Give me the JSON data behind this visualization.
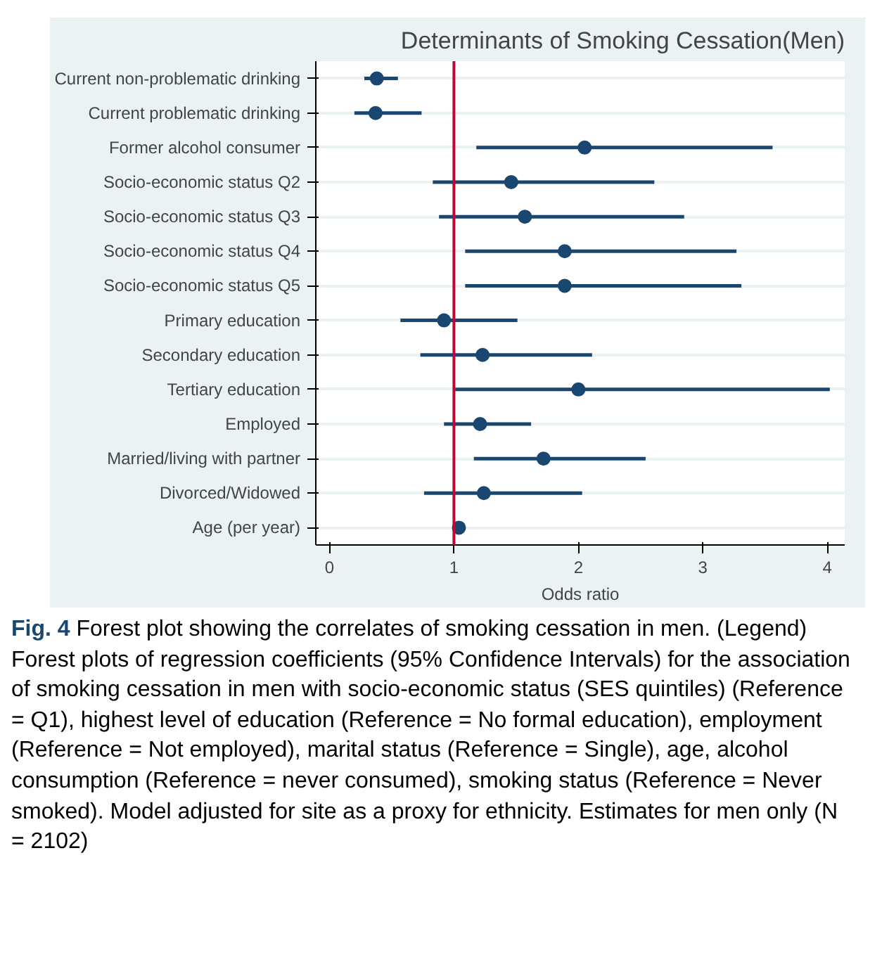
{
  "chart_data": {
    "type": "scatter",
    "title": "Determinants of Smoking Cessation(Men)",
    "xlabel": "Odds ratio",
    "categories": [
      "Current non-problematic drinking",
      "Current problematic drinking",
      "Former alcohol consumer",
      "Socio-economic status Q2",
      "Socio-economic status Q3",
      "Socio-economic status Q4",
      "Socio-economic status Q5",
      "Primary education",
      "Secondary education",
      "Tertiary education",
      "Employed",
      "Married/living with partner",
      "Divorced/Widowed",
      "Age (per year)"
    ],
    "orientation": "horizontal",
    "series": [
      {
        "color": "#1a476f",
        "values": [
          0.38,
          0.37,
          2.05,
          1.46,
          1.57,
          1.89,
          1.89,
          0.92,
          1.23,
          2.0,
          1.21,
          1.72,
          1.24,
          1.04
        ],
        "errors": [
          [
            0.28,
            0.55
          ],
          [
            0.2,
            0.74
          ],
          [
            1.18,
            3.56
          ],
          [
            0.83,
            2.61
          ],
          [
            0.88,
            2.85
          ],
          [
            1.09,
            3.27
          ],
          [
            1.09,
            3.31
          ],
          [
            0.57,
            1.51
          ],
          [
            0.73,
            2.11
          ],
          [
            1.01,
            4.02
          ],
          [
            0.92,
            1.62
          ],
          [
            1.16,
            2.54
          ],
          [
            0.76,
            2.03
          ],
          null
        ]
      }
    ],
    "xlim": [
      -0.11,
      4.14
    ],
    "xticks": [
      0,
      1,
      2,
      3,
      4
    ],
    "ref_lines": [
      {
        "axis": "x",
        "value": 1,
        "color": "#c10534"
      }
    ],
    "grid": "y",
    "marker": "circle",
    "annotations": [
      "Fig. 4",
      "Forest plot showing the correlates of smoking cessation in men. (Legend) Forest plots of regression coefficients (95% Confidence Intervals) for the association of smoking cessation in men with socio-economic status (SES quintiles) (Reference = Q1), highest level of education (Reference = No formal education), employment (Reference = Not employed), marital status (Reference = Single), age, alcohol consumption (Reference = never consumed), smoking status (Reference = Never smoked). Model adjusted for site as a proxy for ethnicity. Estimates for men only (N = 2102)"
    ]
  }
}
